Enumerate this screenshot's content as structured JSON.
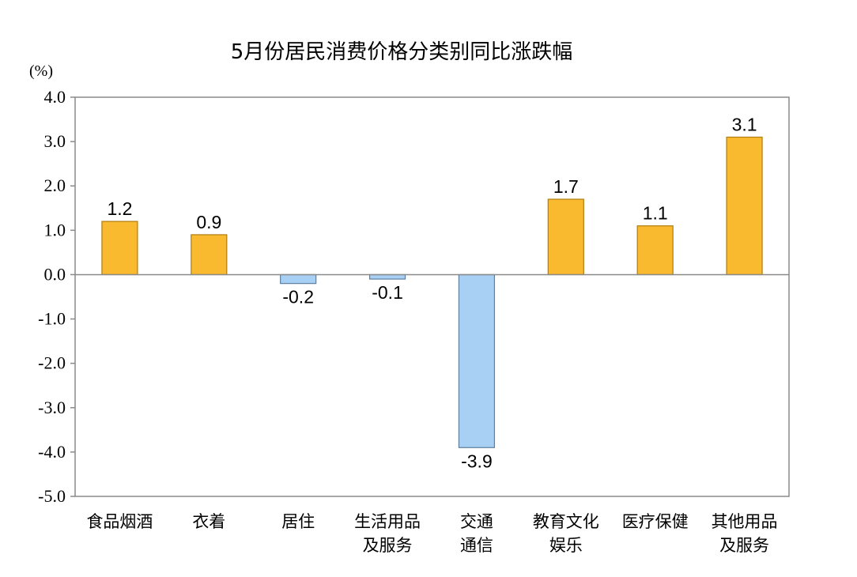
{
  "chart_data": {
    "type": "bar",
    "title": "5月份居民消费价格分类别同比涨跌幅",
    "ylabel": "(%)",
    "xlabel": "",
    "ylim": [
      -5.0,
      4.0
    ],
    "yticks": [
      "4.0",
      "3.0",
      "2.0",
      "1.0",
      "0.0",
      "-1.0",
      "-2.0",
      "-3.0",
      "-4.0",
      "-5.0"
    ],
    "categories": [
      [
        "食品烟酒"
      ],
      [
        "衣着"
      ],
      [
        "居住"
      ],
      [
        "生活用品",
        "及服务"
      ],
      [
        "交通",
        "通信"
      ],
      [
        "教育文化",
        "娱乐"
      ],
      [
        "医疗保健"
      ],
      [
        "其他用品",
        "及服务"
      ]
    ],
    "values": [
      1.2,
      0.9,
      -0.2,
      -0.1,
      -3.9,
      1.7,
      1.1,
      3.1
    ],
    "data_labels": [
      "1.2",
      "0.9",
      "-0.2",
      "-0.1",
      "-3.9",
      "1.7",
      "1.1",
      "3.1"
    ],
    "colors": {
      "positive_fill": "#F9BA30",
      "positive_stroke": "#B07C10",
      "negative_fill": "#A8D0F4",
      "negative_stroke": "#5C7E9F",
      "axis": "#8A8A8A"
    },
    "grid": false,
    "legend": "none"
  }
}
